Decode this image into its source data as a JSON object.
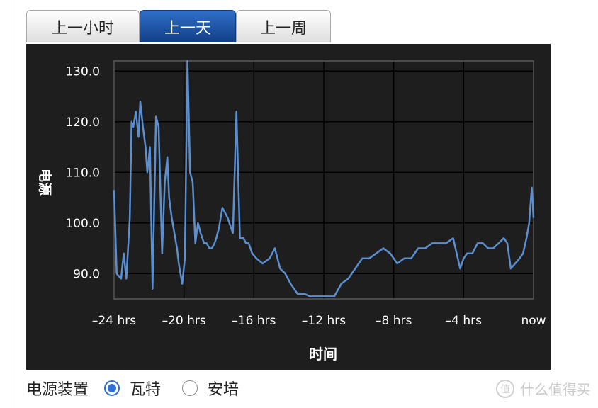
{
  "tabs": [
    {
      "label": "上一小时",
      "active": false
    },
    {
      "label": "上一天",
      "active": true
    },
    {
      "label": "上一周",
      "active": false
    }
  ],
  "chart_data": {
    "type": "line",
    "title": "",
    "xlabel": "时间",
    "ylabel": "电源",
    "x_unit": "hrs",
    "xlim": [
      -24,
      0
    ],
    "ylim": [
      85,
      132
    ],
    "x_ticks": [
      -24,
      -20,
      -16,
      -12,
      -8,
      -4,
      0
    ],
    "x_tick_labels": [
      "–24 hrs",
      "–20 hrs",
      "–16 hrs",
      "–12 hrs",
      "–8 hrs",
      "–4 hrs",
      "now"
    ],
    "y_ticks": [
      90,
      100,
      110,
      120,
      130
    ],
    "y_tick_labels": [
      "90.0",
      "100.0",
      "110.0",
      "120.0",
      "130.0"
    ],
    "grid": true,
    "series_color": "#5b8fd0",
    "series": [
      {
        "x": [
          -24.0,
          -23.85,
          -23.6,
          -23.45,
          -23.3,
          -23.1,
          -23.0,
          -22.9,
          -22.75,
          -22.6,
          -22.5,
          -22.35,
          -22.2,
          -22.1,
          -21.95,
          -21.8,
          -21.6,
          -21.45,
          -21.25,
          -21.1,
          -20.95,
          -20.85,
          -20.7,
          -20.55,
          -20.4,
          -20.3,
          -20.1,
          -19.95,
          -19.8,
          -19.65,
          -19.5,
          -19.35,
          -19.2,
          -19.05,
          -18.85,
          -18.7,
          -18.55,
          -18.4,
          -18.25,
          -18.15,
          -18.0,
          -17.8,
          -17.5,
          -17.2,
          -17.0,
          -16.8,
          -16.6,
          -16.45,
          -16.3,
          -16.2,
          -16.1,
          -15.85,
          -15.5,
          -15.1,
          -14.8,
          -14.5,
          -14.2,
          -13.9,
          -13.5,
          -13.1,
          -12.8,
          -12.4,
          -12.0,
          -11.7,
          -11.4,
          -11.0,
          -10.6,
          -10.2,
          -9.8,
          -9.4,
          -9.0,
          -8.6,
          -8.2,
          -7.8,
          -7.4,
          -7.0,
          -6.6,
          -6.2,
          -5.8,
          -5.4,
          -5.0,
          -4.6,
          -4.2,
          -4.0,
          -3.8,
          -3.5,
          -3.2,
          -2.9,
          -2.6,
          -2.3,
          -2.0,
          -1.7,
          -1.5,
          -1.3,
          -1.05,
          -0.8,
          -0.6,
          -0.4,
          -0.25,
          -0.1,
          0.0
        ],
        "values": [
          106.5,
          90,
          89,
          94,
          89,
          101,
          120,
          119,
          122,
          117,
          124,
          119,
          115,
          110,
          115,
          87,
          121,
          119,
          94,
          108,
          113,
          105,
          101,
          98,
          95,
          92,
          88,
          93,
          132,
          110,
          108,
          96,
          100,
          98,
          96,
          96,
          95,
          95,
          96,
          97,
          99,
          103,
          101,
          98,
          122,
          97,
          97,
          96,
          96,
          95,
          94,
          93,
          92,
          93,
          95,
          91,
          90,
          88,
          86,
          86,
          85.5,
          85.5,
          85.5,
          85.5,
          85.5,
          88,
          89,
          91,
          93,
          93,
          94,
          95,
          94,
          92,
          93,
          93,
          95,
          95,
          96,
          96,
          96,
          97,
          91,
          93,
          94,
          94,
          96,
          96,
          95,
          95,
          96,
          97,
          96,
          91,
          92,
          93,
          94,
          97,
          100,
          107,
          101
        ]
      }
    ]
  }
}
